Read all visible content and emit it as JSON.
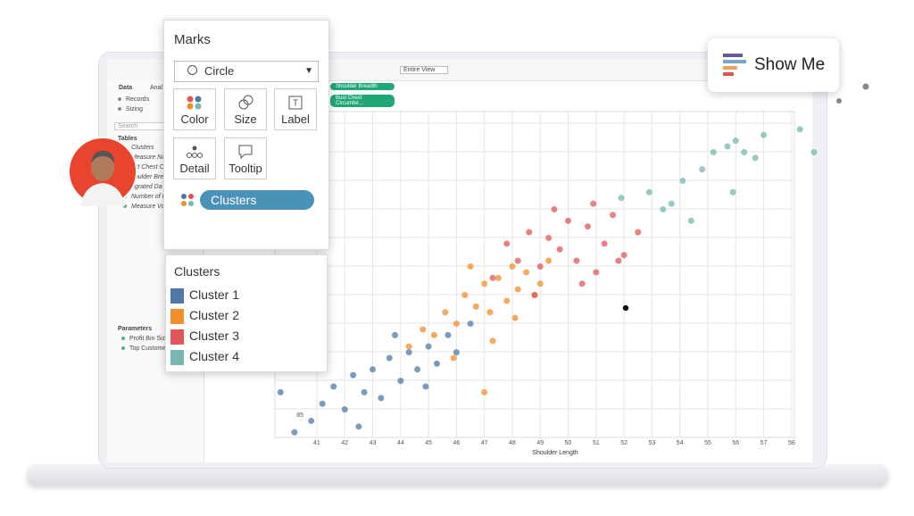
{
  "toolbar": {
    "view": "Entire View"
  },
  "data_pane": {
    "tabs": [
      "Data",
      "Anal"
    ],
    "items": [
      "Records",
      "Sizing"
    ],
    "search": "Search",
    "tables_heading": "Tables",
    "fields": [
      "Clusters",
      "Measure Nar",
      "ust Chest C",
      "houlder Bre",
      "egrated Da",
      "Number of R",
      "Measure Valu"
    ],
    "parameters_heading": "Parameters",
    "parameters": [
      "Profit Bin Siz",
      "Top Custome"
    ]
  },
  "shelves": [
    "Shoulder Breadth",
    "Bust Chest Circumfer..."
  ],
  "marks_card": {
    "title": "Marks",
    "mark_type": "Circle",
    "buttons": [
      "Color",
      "Size",
      "Label",
      "Detail",
      "Tooltip"
    ],
    "pill": "Clusters"
  },
  "legend": {
    "title": "Clusters"
  },
  "show_me": "Show Me",
  "chart_data": {
    "type": "scatter",
    "x_label": "Shoulder Length",
    "xlim": [
      39.5,
      58.1
    ],
    "ylim": [
      81.1,
      138.1
    ],
    "xticks": [
      41,
      42,
      43,
      44,
      45,
      46,
      47,
      48,
      49,
      50,
      51,
      52,
      53,
      54,
      55,
      56,
      57,
      58
    ],
    "yticks": [
      85
    ],
    "grid": true,
    "series": [
      {
        "name": "Cluster 1",
        "color": "#4e79a7",
        "x": [
          40.8,
          41.2,
          41.6,
          42,
          42.3,
          42.7,
          43,
          43.3,
          43.6,
          44,
          44.3,
          44.6,
          45,
          45.3,
          45.7,
          46,
          46.5,
          39.7,
          40.2,
          42.5,
          43.8,
          44.9
        ],
        "values": [
          84,
          87,
          90,
          86,
          92,
          89,
          93,
          88,
          95,
          91,
          96,
          93,
          97,
          94,
          99,
          96,
          101,
          89,
          82,
          83,
          99,
          90
        ]
      },
      {
        "name": "Cluster 2",
        "color": "#f28e2b",
        "x": [
          44.3,
          44.8,
          45.2,
          45.6,
          46,
          46.3,
          46.7,
          47,
          47.2,
          47.5,
          47.8,
          48,
          48.2,
          48.5,
          48.8,
          49,
          49.3,
          45.9,
          47.3,
          46.5,
          48.1,
          47
        ],
        "values": [
          97,
          100,
          99,
          103,
          101,
          106,
          104,
          108,
          103,
          109,
          105,
          111,
          107,
          110,
          106,
          108,
          112,
          95,
          98,
          111,
          102,
          89
        ]
      },
      {
        "name": "Cluster 3",
        "color": "#e15759",
        "x": [
          47.3,
          47.8,
          48.2,
          48.6,
          49,
          49.3,
          49.7,
          50,
          50.3,
          50.7,
          51,
          51.3,
          51.6,
          52,
          52.5,
          49.5,
          50.5,
          51.8,
          48.8,
          50.9
        ],
        "values": [
          109,
          115,
          112,
          117,
          111,
          116,
          114,
          119,
          112,
          118,
          110,
          115,
          120,
          113,
          117,
          121,
          108,
          112,
          106,
          122
        ]
      },
      {
        "name": "Cluster 4",
        "color": "#76b7b2",
        "x": [
          51.9,
          52.9,
          53.7,
          54.4,
          54.8,
          55.2,
          55.7,
          56.3,
          56.7,
          57,
          58.3,
          58.8,
          53.4,
          55.9,
          54.1,
          56
        ],
        "values": [
          123,
          124,
          122,
          119,
          128,
          131,
          132,
          131,
          130,
          134,
          135,
          131,
          121,
          124,
          126,
          133
        ]
      }
    ]
  }
}
